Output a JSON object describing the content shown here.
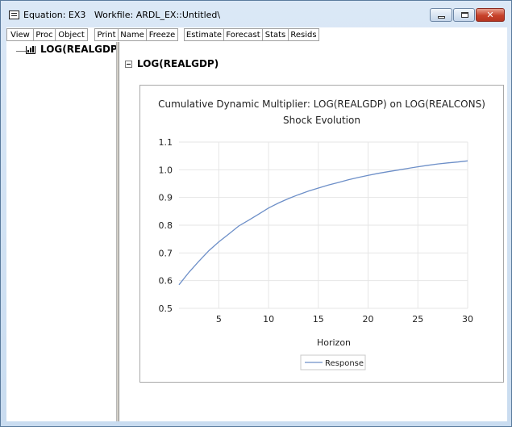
{
  "window": {
    "title": "Equation: EX3   Workfile: ARDL_EX::Untitled\\",
    "close_glyph": "✕"
  },
  "toolbar": {
    "buttons": [
      "View",
      "Proc",
      "Object",
      "Print",
      "Name",
      "Freeze",
      "Estimate",
      "Forecast",
      "Stats",
      "Resids"
    ]
  },
  "tree": {
    "item_label": "LOG(REALGDP)",
    "item_icon": "graph-icon"
  },
  "section": {
    "title": "LOG(REALGDP)"
  },
  "colors": {
    "line": "#6d8fc8",
    "grid": "#e6e6e6",
    "close_button": "#c7422b"
  },
  "chart_data": {
    "type": "line",
    "title": "Cumulative Dynamic Multiplier: LOG(REALGDP) on LOG(REALCONS)",
    "subtitle": "Shock Evolution",
    "xlabel": "Horizon",
    "ylabel": "",
    "xlim": [
      1,
      30
    ],
    "ylim": [
      0.5,
      1.1
    ],
    "x_ticks": [
      5,
      10,
      15,
      20,
      25,
      30
    ],
    "y_ticks": [
      0.5,
      0.6,
      0.7,
      0.8,
      0.9,
      1.0,
      1.1
    ],
    "y_tick_labels": [
      "0.5",
      "0.6",
      "0.7",
      "0.8",
      "0.9",
      "1.0",
      "1.1"
    ],
    "grid": true,
    "legend_position": "bottom-center",
    "series": [
      {
        "name": "Response",
        "x": [
          1,
          2,
          3,
          4,
          5,
          6,
          7,
          8,
          9,
          10,
          11,
          12,
          13,
          14,
          15,
          16,
          17,
          18,
          19,
          20,
          21,
          22,
          23,
          24,
          25,
          26,
          27,
          28,
          29,
          30
        ],
        "values": [
          0.585,
          0.63,
          0.67,
          0.708,
          0.74,
          0.768,
          0.797,
          0.818,
          0.84,
          0.862,
          0.88,
          0.896,
          0.91,
          0.923,
          0.934,
          0.945,
          0.954,
          0.964,
          0.972,
          0.98,
          0.987,
          0.993,
          0.999,
          1.005,
          1.011,
          1.016,
          1.021,
          1.025,
          1.028,
          1.032
        ]
      }
    ]
  }
}
